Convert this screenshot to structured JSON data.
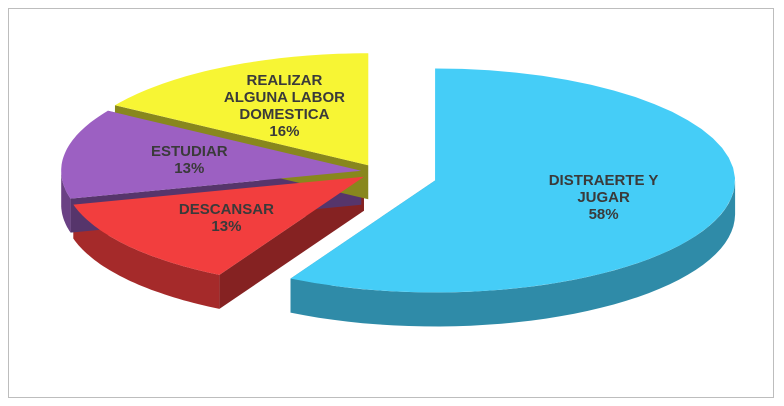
{
  "chart_data": {
    "type": "pie",
    "categories": [
      "DISTRAERTE Y JUGAR",
      "DESCANSAR",
      "ESTUDIAR",
      "REALIZAR ALGUNA LABOR DOMESTICA"
    ],
    "values": [
      58,
      13,
      13,
      16
    ],
    "value_labels": [
      "58%",
      "13%",
      "13%",
      "16%"
    ],
    "colors": [
      "#45cdf7",
      "#f23e3e",
      "#9c60c2",
      "#f7f534"
    ]
  }
}
